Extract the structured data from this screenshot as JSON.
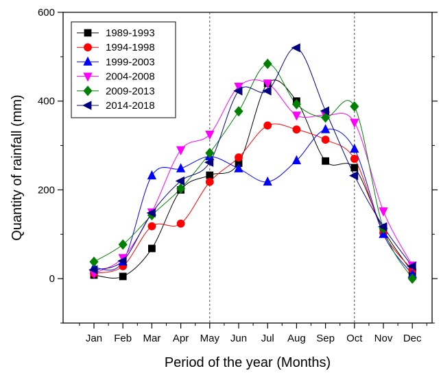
{
  "chart_data": {
    "type": "line",
    "title": "",
    "xlabel": "Period of the year (Months)",
    "ylabel": "Quantity of rainfall (mm)",
    "ylim": [
      -100,
      600
    ],
    "yticks": [
      0,
      200,
      400,
      600
    ],
    "categories": [
      "Jan",
      "Feb",
      "Mar",
      "Apr",
      "May",
      "Jun",
      "Jul",
      "Aug",
      "Sep",
      "Oct",
      "Nov",
      "Dec"
    ],
    "reference_lines": [
      "May",
      "Oct"
    ],
    "grid": false,
    "legend_position": "top-left",
    "series": [
      {
        "name": "1989-1993",
        "color": "#000000",
        "marker": "square",
        "values": [
          8,
          5,
          68,
          200,
          233,
          260,
          440,
          400,
          265,
          250,
          110,
          15
        ]
      },
      {
        "name": "1994-1998",
        "color": "#ff0000",
        "marker": "circle",
        "values": [
          12,
          28,
          118,
          124,
          218,
          273,
          345,
          336,
          313,
          270,
          103,
          20
        ]
      },
      {
        "name": "1999-2003",
        "color": "#0000ff",
        "marker": "triangle-up",
        "values": [
          25,
          38,
          232,
          248,
          275,
          248,
          218,
          266,
          336,
          292,
          100,
          10
        ]
      },
      {
        "name": "2004-2008",
        "color": "#ff00ff",
        "marker": "triangle-down",
        "values": [
          12,
          47,
          150,
          290,
          325,
          433,
          440,
          368,
          368,
          352,
          152,
          30
        ]
      },
      {
        "name": "2009-2013",
        "color": "#008000",
        "marker": "diamond",
        "values": [
          38,
          77,
          143,
          203,
          283,
          377,
          484,
          393,
          363,
          388,
          113,
          0
        ]
      },
      {
        "name": "2014-2018",
        "color": "#000080",
        "marker": "triangle-left",
        "values": [
          20,
          40,
          148,
          220,
          262,
          423,
          423,
          520,
          378,
          232,
          117,
          28
        ]
      }
    ]
  }
}
